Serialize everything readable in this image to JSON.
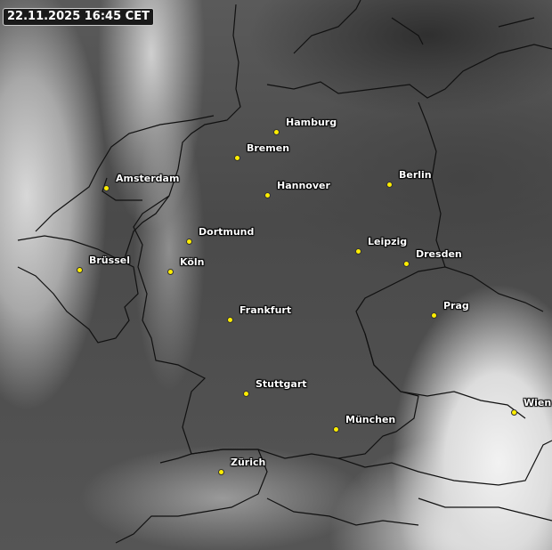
{
  "timestamp": "22.11.2025 16:45 CET",
  "colors": {
    "city_marker": "#ffee00",
    "border": "#111111"
  },
  "cities": [
    {
      "name": "Hamburg"
    },
    {
      "name": "Bremen"
    },
    {
      "name": "Amsterdam"
    },
    {
      "name": "Hannover"
    },
    {
      "name": "Berlin"
    },
    {
      "name": "Dortmund"
    },
    {
      "name": "Leipzig"
    },
    {
      "name": "Dresden"
    },
    {
      "name": "Brüssel"
    },
    {
      "name": "Köln"
    },
    {
      "name": "Prag"
    },
    {
      "name": "Frankfurt"
    },
    {
      "name": "Stuttgart"
    },
    {
      "name": "Wien"
    },
    {
      "name": "München"
    },
    {
      "name": "Zürich"
    }
  ]
}
